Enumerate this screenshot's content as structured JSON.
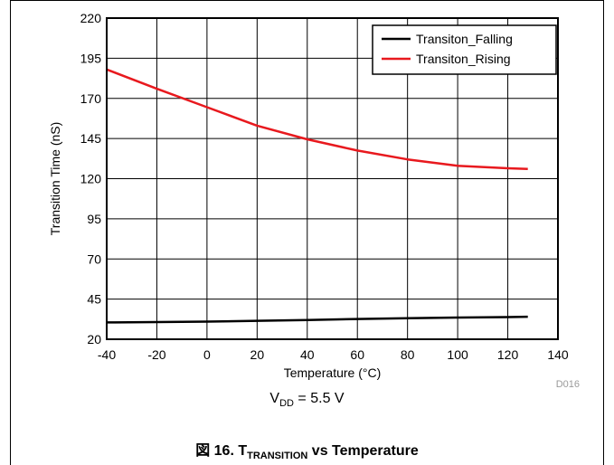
{
  "chart_data": {
    "type": "line",
    "xlabel": "Temperature (°C)",
    "ylabel": "Transition Time (nS)",
    "xlim": [
      -40,
      140
    ],
    "ylim": [
      20,
      220
    ],
    "xticks": [
      -40,
      -20,
      0,
      20,
      40,
      60,
      80,
      100,
      120,
      140
    ],
    "yticks": [
      20,
      45,
      70,
      95,
      120,
      145,
      170,
      195,
      220
    ],
    "grid": true,
    "legend": "top-right",
    "series": [
      {
        "name": "Transiton_Falling",
        "color": "#000000",
        "x": [
          -40,
          -20,
          0,
          20,
          40,
          60,
          80,
          100,
          120,
          128
        ],
        "y": [
          30.5,
          30.7,
          31.0,
          31.5,
          32.0,
          32.6,
          33.1,
          33.5,
          33.8,
          34.0
        ]
      },
      {
        "name": "Transiton_Rising",
        "color": "#e8191e",
        "x": [
          -40,
          -20,
          0,
          20,
          40,
          60,
          80,
          100,
          120,
          128
        ],
        "y": [
          188,
          176,
          164.5,
          153,
          144.5,
          137.5,
          132,
          128,
          126.5,
          126
        ]
      }
    ],
    "code": "D016"
  },
  "condition": {
    "prefix": "V",
    "sub": "DD",
    "suffix": " = 5.5 V"
  },
  "caption": {
    "prefix": "図 16. T",
    "sub": "TRANSITION",
    "suffix": " vs Temperature"
  }
}
